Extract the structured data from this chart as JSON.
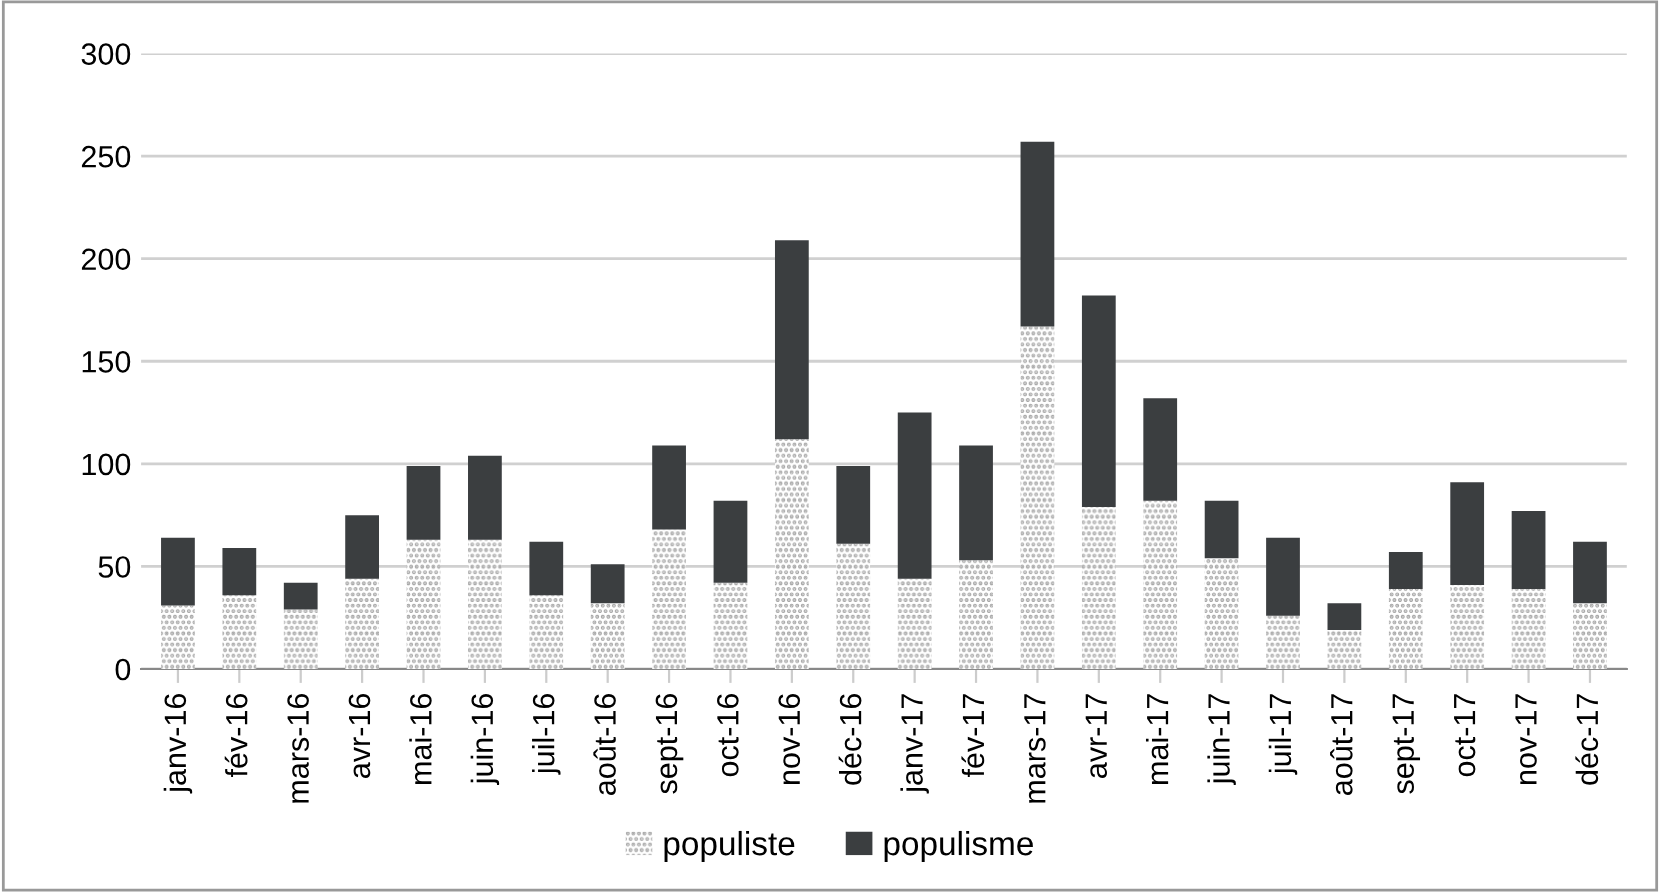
{
  "chart_data": {
    "type": "bar",
    "stacked": true,
    "categories": [
      "janv-16",
      "fév-16",
      "mars-16",
      "avr-16",
      "mai-16",
      "juin-16",
      "juil-16",
      "août-16",
      "sept-16",
      "oct-16",
      "nov-16",
      "déc-16",
      "janv-17",
      "fév-17",
      "mars-17",
      "avr-17",
      "mai-17",
      "juin-17",
      "juil-17",
      "août-17",
      "sept-17",
      "oct-17",
      "nov-17",
      "déc-17"
    ],
    "series": [
      {
        "name": "populiste",
        "color": "#a6a6a6",
        "values": [
          31,
          36,
          29,
          44,
          63,
          63,
          36,
          32,
          68,
          42,
          112,
          61,
          44,
          53,
          167,
          79,
          82,
          54,
          26,
          19,
          39,
          41,
          39,
          32
        ]
      },
      {
        "name": "populisme",
        "color": "#3b3e40",
        "values": [
          33,
          23,
          13,
          31,
          36,
          41,
          26,
          19,
          41,
          40,
          97,
          38,
          81,
          56,
          90,
          103,
          50,
          28,
          38,
          13,
          18,
          50,
          38,
          30
        ]
      }
    ],
    "ylim": [
      0,
      300
    ],
    "yticks": [
      0,
      50,
      100,
      150,
      200,
      250,
      300
    ],
    "grid": "y",
    "legend": "bottom"
  }
}
